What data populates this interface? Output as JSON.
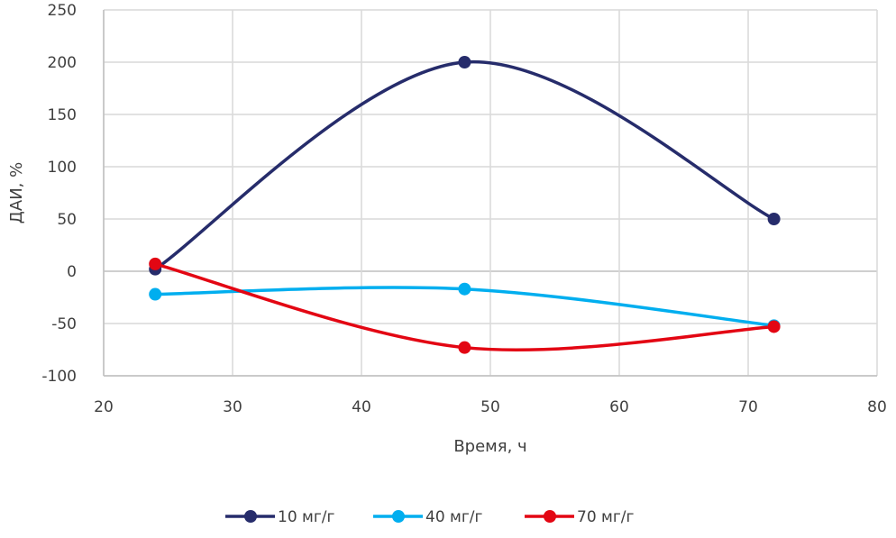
{
  "chart_data": {
    "type": "line",
    "smooth": true,
    "title": "",
    "xlabel": "Время, ч",
    "ylabel": "ДАИ, %",
    "xlim": [
      20,
      80
    ],
    "ylim": [
      -100,
      250
    ],
    "xticks": [
      20,
      30,
      40,
      50,
      60,
      70,
      80
    ],
    "yticks": [
      -100,
      -50,
      0,
      50,
      100,
      150,
      200,
      250
    ],
    "grid": true,
    "legend_position": "bottom",
    "x": [
      24,
      48,
      72
    ],
    "series": [
      {
        "name": "10 мг/г",
        "color": "#262C6B",
        "values": [
          2,
          200,
          50
        ]
      },
      {
        "name": "40 мг/г",
        "color": "#00AEEF",
        "values": [
          -22,
          -17,
          -52
        ]
      },
      {
        "name": "70 мг/г",
        "color": "#E30613",
        "values": [
          7,
          -73,
          -53
        ]
      }
    ]
  }
}
